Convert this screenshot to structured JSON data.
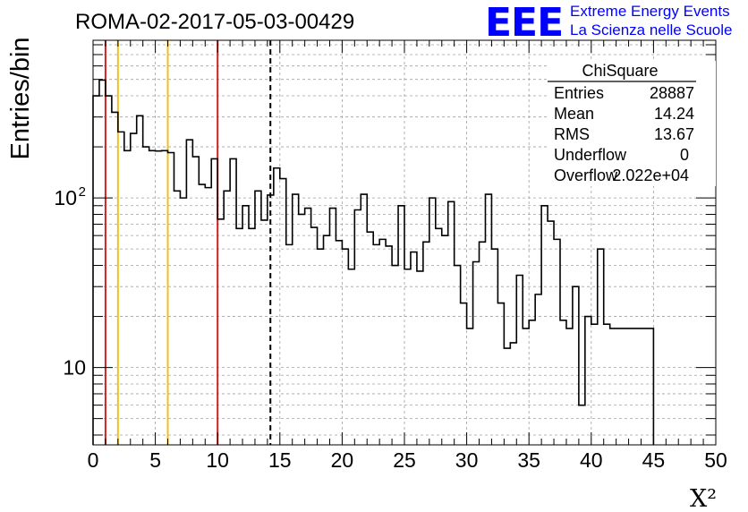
{
  "title": "ROMA-02-2017-05-03-00429",
  "logo": {
    "mark": "EEE",
    "line1": "Extreme Energy Events",
    "line2": "La Scienza nelle Scuole",
    "color": "#0000ff"
  },
  "chart_data": {
    "type": "histogram",
    "xlabel": "X²",
    "ylabel": "Entries/bin",
    "xlim": [
      0,
      50
    ],
    "ylim": [
      3.5,
      850
    ],
    "log_y": true,
    "grid": true,
    "bin_width": 0.5,
    "x_ticks": [
      "0",
      "5",
      "10",
      "15",
      "20",
      "25",
      "30",
      "35",
      "40",
      "45",
      "50"
    ],
    "y_ticks": [
      {
        "value": 10,
        "label": "10"
      },
      {
        "value": 100,
        "label": "10",
        "exponent": "2"
      }
    ],
    "values": [
      400,
      495,
      400,
      320,
      245,
      190,
      240,
      305,
      200,
      190,
      189,
      190,
      185,
      110,
      100,
      220,
      175,
      120,
      115,
      170,
      75,
      110,
      170,
      66,
      90,
      66,
      110,
      74,
      104,
      150,
      130,
      53,
      105,
      80,
      87,
      67,
      50,
      60,
      87,
      56,
      50,
      38,
      85,
      105,
      63,
      53,
      57,
      52,
      40,
      90,
      38,
      48,
      37,
      55,
      100,
      66,
      60,
      95,
      40,
      24,
      17,
      42,
      55,
      105,
      50,
      24,
      13,
      14,
      35,
      17,
      19,
      27,
      90,
      73,
      57,
      19,
      17,
      30,
      6,
      20,
      18,
      50,
      18,
      17,
      17,
      17,
      17,
      17,
      17,
      17
    ],
    "vertical_lines": [
      {
        "x": 1,
        "color": "#d42020",
        "style": "solid"
      },
      {
        "x": 2,
        "color": "#f0c020",
        "style": "solid"
      },
      {
        "x": 6,
        "color": "#f0c020",
        "style": "solid"
      },
      {
        "x": 10,
        "color": "#d42020",
        "style": "solid"
      },
      {
        "x": 14.24,
        "color": "#000000",
        "style": "dashed"
      }
    ]
  },
  "stats": {
    "name": "ChiSquare",
    "rows": [
      {
        "label": "Entries",
        "value": "28887"
      },
      {
        "label": "Mean",
        "value": "14.24"
      },
      {
        "label": "RMS",
        "value": "13.67"
      },
      {
        "label": "Underflow",
        "value": "0"
      },
      {
        "label": "Overflow",
        "value": "2.022e+04"
      }
    ]
  }
}
